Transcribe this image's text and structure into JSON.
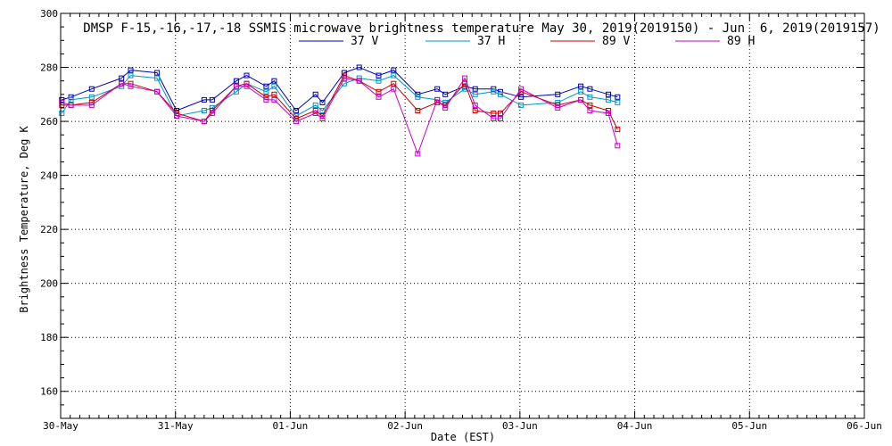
{
  "chart_data": {
    "type": "line",
    "title": "DMSP F-15,-16,-17,-18 SSMIS microwave brightness temperature May 30, 2019(2019150) - Jun  6, 2019(2019157)",
    "xlabel": "Date (EST)",
    "ylabel": "Brightness Temperature, Deg K",
    "xlim": [
      0,
      7
    ],
    "ylim": [
      150,
      300
    ],
    "x_ticks": [
      0,
      1,
      2,
      3,
      4,
      5,
      6,
      7
    ],
    "x_tick_labels": [
      "30-May",
      "31-May",
      "01-Jun",
      "02-Jun",
      "03-Jun",
      "04-Jun",
      "05-Jun",
      "06-Jun"
    ],
    "y_ticks": [
      160,
      180,
      200,
      220,
      240,
      260,
      280,
      300
    ],
    "y_tick_labels": [
      "160",
      "180",
      "200",
      "220",
      "240",
      "260",
      "280",
      "300"
    ],
    "grid": true,
    "legend_position": "top-center",
    "series": [
      {
        "name": "37 V",
        "color": "#0000b4",
        "x": [
          0.01,
          0.09,
          0.27,
          0.53,
          0.61,
          0.84,
          1.01,
          1.25,
          1.32,
          1.53,
          1.62,
          1.79,
          1.86,
          2.05,
          2.22,
          2.28,
          2.47,
          2.6,
          2.77,
          2.9,
          3.11,
          3.28,
          3.35,
          3.52,
          3.61,
          3.77,
          3.83,
          4.01,
          4.33,
          4.53,
          4.61,
          4.77,
          4.85
        ],
        "values": [
          268,
          269,
          272,
          276,
          279,
          278,
          264,
          268,
          268,
          275,
          277,
          273,
          275,
          264,
          270,
          267,
          278,
          280,
          277,
          279,
          270,
          272,
          270,
          273,
          272,
          272,
          271,
          269,
          270,
          273,
          272,
          270,
          269
        ]
      },
      {
        "name": "37 H",
        "color": "#0095c8",
        "x": [
          0.01,
          0.09,
          0.27,
          0.53,
          0.61,
          0.84,
          1.01,
          1.25,
          1.32,
          1.53,
          1.62,
          1.79,
          1.86,
          2.05,
          2.22,
          2.28,
          2.47,
          2.6,
          2.77,
          2.9,
          3.11,
          3.28,
          3.35,
          3.52,
          3.61,
          3.77,
          3.83,
          4.01,
          4.33,
          4.53,
          4.61,
          4.77,
          4.85
        ],
        "values": [
          263,
          268,
          269,
          273,
          277,
          276,
          262,
          264,
          265,
          271,
          274,
          271,
          273,
          262,
          266,
          264,
          274,
          276,
          275,
          277,
          269,
          268,
          267,
          272,
          270,
          271,
          270,
          266,
          267,
          271,
          269,
          268,
          267
        ]
      },
      {
        "name": "89 V",
        "color": "#c80000",
        "x": [
          0.01,
          0.09,
          0.27,
          0.53,
          0.61,
          0.84,
          1.01,
          1.25,
          1.32,
          1.53,
          1.62,
          1.79,
          1.86,
          2.05,
          2.22,
          2.28,
          2.47,
          2.6,
          2.77,
          2.9,
          3.11,
          3.28,
          3.35,
          3.52,
          3.61,
          3.77,
          3.83,
          4.01,
          4.33,
          4.53,
          4.61,
          4.77,
          4.85
        ],
        "values": [
          266,
          266,
          267,
          274,
          274,
          271,
          263,
          260,
          264,
          273,
          274,
          269,
          270,
          261,
          264,
          262,
          277,
          275,
          271,
          274,
          264,
          267,
          266,
          274,
          264,
          263,
          263,
          271,
          266,
          268,
          266,
          264,
          257
        ]
      },
      {
        "name": "89 H",
        "color": "#c800c8",
        "x": [
          0.01,
          0.09,
          0.27,
          0.53,
          0.61,
          0.84,
          1.01,
          1.25,
          1.32,
          1.53,
          1.62,
          1.79,
          1.86,
          2.05,
          2.22,
          2.28,
          2.47,
          2.6,
          2.77,
          2.9,
          3.11,
          3.28,
          3.35,
          3.52,
          3.61,
          3.77,
          3.83,
          4.01,
          4.33,
          4.53,
          4.61,
          4.77,
          4.85
        ],
        "values": [
          267,
          266,
          266,
          274,
          273,
          271,
          262,
          260,
          263,
          273,
          273,
          268,
          268,
          260,
          263,
          261,
          276,
          275,
          269,
          272,
          248,
          268,
          265,
          276,
          266,
          261,
          261,
          272,
          265,
          268,
          264,
          263,
          251
        ]
      }
    ]
  }
}
